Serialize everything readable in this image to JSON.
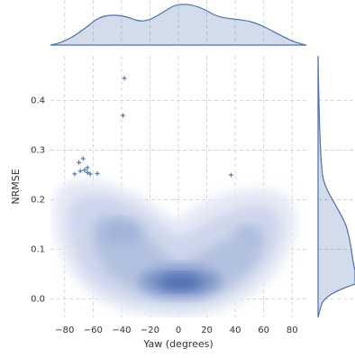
{
  "chart_data": {
    "type": "joint_scatter",
    "x_label": "Yaw (degrees)",
    "y_label": "NRMSE",
    "x": [
      -38,
      -39,
      -73,
      -70,
      -67,
      -69,
      -66,
      -64,
      -64,
      -62,
      -57,
      37
    ],
    "values": [
      0.445,
      0.37,
      0.252,
      0.275,
      0.283,
      0.258,
      0.26,
      0.265,
      0.255,
      0.252,
      0.253,
      0.25
    ],
    "color": "#4c72b0",
    "xlim": [
      -90,
      90
    ],
    "xticks": [
      {
        "value": -80,
        "label": "−80"
      },
      {
        "value": -60,
        "label": "−60"
      },
      {
        "value": -40,
        "label": "−40"
      },
      {
        "value": -20,
        "label": "−20"
      },
      0,
      20,
      40,
      60,
      80
    ],
    "ylim": [
      -0.037,
      0.49
    ],
    "yticks": [
      {
        "value": 0,
        "label": "0.0"
      },
      0.1,
      0.2,
      0.3,
      0.4
    ],
    "grid": true
  }
}
